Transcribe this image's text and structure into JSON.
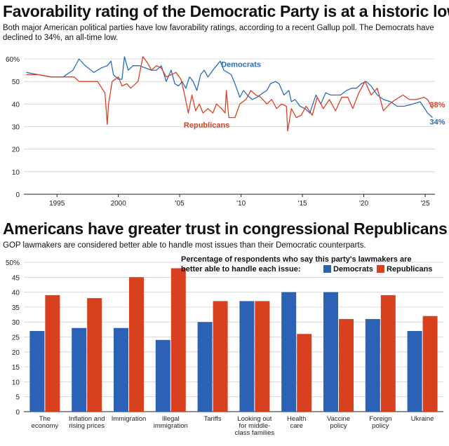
{
  "favorability": {
    "title": "Favorability rating of the Democratic Party is at a historic low",
    "subtitle": "Both major American political parties have low favorability ratings, according to a recent Gallup poll. The Democrats have declined to 34%, an all-time low.",
    "chart_data": {
      "type": "line",
      "ylim": [
        0,
        60
      ],
      "xlim": [
        1992.3,
        2025.8
      ],
      "y_ticks": [
        "0",
        "10",
        "20",
        "30",
        "40",
        "50",
        "60%"
      ],
      "y_tick_values": [
        0,
        10,
        20,
        30,
        40,
        50,
        60
      ],
      "x_ticks": [
        "1995",
        "2000",
        "'05",
        "'10",
        "'15",
        "'20",
        "'25"
      ],
      "x_tick_values": [
        1995,
        2000,
        2005,
        2010,
        2015,
        2020,
        2025
      ],
      "grid": true,
      "series": [
        {
          "name": "Democrats",
          "color": "#2b6cb8",
          "end_label": "34%",
          "points": [
            [
              1992.5,
              54
            ],
            [
              1993.5,
              53
            ],
            [
              1994.5,
              52
            ],
            [
              1995.5,
              52
            ],
            [
              1996.3,
              55
            ],
            [
              1996.8,
              60
            ],
            [
              1997.3,
              57
            ],
            [
              1998,
              54
            ],
            [
              1998.6,
              56
            ],
            [
              1999.1,
              57
            ],
            [
              1999.4,
              59
            ],
            [
              1999.6,
              53
            ],
            [
              2000,
              51
            ],
            [
              2000.3,
              51
            ],
            [
              2000.5,
              61
            ],
            [
              2000.8,
              55
            ],
            [
              2001.2,
              57
            ],
            [
              2001.7,
              57
            ],
            [
              2002.2,
              56
            ],
            [
              2002.7,
              55
            ],
            [
              2003.1,
              55
            ],
            [
              2003.5,
              57
            ],
            [
              2003.9,
              50
            ],
            [
              2004.3,
              55
            ],
            [
              2004.6,
              49
            ],
            [
              2004.9,
              48
            ],
            [
              2005.2,
              50
            ],
            [
              2005.5,
              47
            ],
            [
              2005.8,
              52
            ],
            [
              2006.1,
              50
            ],
            [
              2006.4,
              46
            ],
            [
              2006.7,
              53
            ],
            [
              2007,
              55
            ],
            [
              2007.3,
              52
            ],
            [
              2007.7,
              55
            ],
            [
              2008,
              57
            ],
            [
              2008.3,
              59
            ],
            [
              2008.6,
              55
            ],
            [
              2008.9,
              54
            ],
            [
              2009.2,
              53
            ],
            [
              2009.5,
              49
            ],
            [
              2009.9,
              43
            ],
            [
              2010.2,
              46
            ],
            [
              2010.5,
              44
            ],
            [
              2010.9,
              42
            ],
            [
              2011.3,
              43
            ],
            [
              2011.8,
              45
            ],
            [
              2012.1,
              46
            ],
            [
              2012.4,
              49
            ],
            [
              2012.8,
              50
            ],
            [
              2013.1,
              49
            ],
            [
              2013.5,
              44
            ],
            [
              2013.9,
              46
            ],
            [
              2014.1,
              41
            ],
            [
              2014.4,
              42
            ],
            [
              2014.8,
              39
            ],
            [
              2015.2,
              38
            ],
            [
              2015.6,
              36
            ],
            [
              2016.1,
              44
            ],
            [
              2016.5,
              40
            ],
            [
              2016.9,
              45
            ],
            [
              2017.3,
              44
            ],
            [
              2017.7,
              44
            ],
            [
              2018.1,
              44
            ],
            [
              2018.6,
              46
            ],
            [
              2019,
              47
            ],
            [
              2019.4,
              47
            ],
            [
              2019.8,
              49
            ],
            [
              2020.2,
              50
            ],
            [
              2020.6,
              48
            ],
            [
              2021.1,
              44
            ],
            [
              2021.6,
              42
            ],
            [
              2022.2,
              41
            ],
            [
              2022.7,
              39
            ],
            [
              2023.3,
              39
            ],
            [
              2024,
              40
            ],
            [
              2024.6,
              41
            ],
            [
              2025.2,
              36
            ],
            [
              2025.6,
              34
            ]
          ]
        },
        {
          "name": "Republicans",
          "color": "#d9401f",
          "end_label": "38%",
          "points": [
            [
              1992.5,
              53
            ],
            [
              1993.5,
              53
            ],
            [
              1994.5,
              52
            ],
            [
              1995.5,
              52
            ],
            [
              1996.4,
              52
            ],
            [
              1996.8,
              50
            ],
            [
              1997.5,
              50
            ],
            [
              1998.3,
              50
            ],
            [
              1998.9,
              45
            ],
            [
              1999.1,
              31
            ],
            [
              1999.2,
              40
            ],
            [
              1999.5,
              50
            ],
            [
              2000,
              52
            ],
            [
              2000.3,
              48
            ],
            [
              2000.7,
              49
            ],
            [
              2001,
              47
            ],
            [
              2001.6,
              50
            ],
            [
              2002,
              61
            ],
            [
              2002.4,
              58
            ],
            [
              2002.7,
              55
            ],
            [
              2003.1,
              57
            ],
            [
              2003.5,
              56
            ],
            [
              2003.9,
              52
            ],
            [
              2004.3,
              53
            ],
            [
              2004.7,
              54
            ],
            [
              2005.1,
              51
            ],
            [
              2005.4,
              44
            ],
            [
              2005.7,
              36
            ],
            [
              2006,
              44
            ],
            [
              2006.3,
              37
            ],
            [
              2006.6,
              40
            ],
            [
              2006.9,
              36
            ],
            [
              2007.3,
              38
            ],
            [
              2007.7,
              36
            ],
            [
              2008,
              40
            ],
            [
              2008.4,
              38
            ],
            [
              2008.7,
              36
            ],
            [
              2008.8,
              46
            ],
            [
              2009,
              34
            ],
            [
              2009.5,
              34
            ],
            [
              2009.9,
              40
            ],
            [
              2010.4,
              42
            ],
            [
              2010.8,
              46
            ],
            [
              2011.2,
              44
            ],
            [
              2011.6,
              43
            ],
            [
              2012.1,
              40
            ],
            [
              2012.5,
              42
            ],
            [
              2012.9,
              38
            ],
            [
              2013.3,
              40
            ],
            [
              2013.7,
              39
            ],
            [
              2013.8,
              28
            ],
            [
              2014.1,
              38
            ],
            [
              2014.5,
              34
            ],
            [
              2014.9,
              35
            ],
            [
              2015.3,
              39
            ],
            [
              2015.8,
              35
            ],
            [
              2016.2,
              43
            ],
            [
              2016.7,
              38
            ],
            [
              2017.2,
              42
            ],
            [
              2017.7,
              37
            ],
            [
              2018.2,
              43
            ],
            [
              2018.7,
              43
            ],
            [
              2019.1,
              38
            ],
            [
              2019.6,
              45
            ],
            [
              2020.1,
              50
            ],
            [
              2020.6,
              44
            ],
            [
              2021.1,
              47
            ],
            [
              2021.6,
              37
            ],
            [
              2022.1,
              40
            ],
            [
              2022.6,
              42
            ],
            [
              2023.2,
              44
            ],
            [
              2023.7,
              42
            ],
            [
              2024.3,
              42
            ],
            [
              2024.9,
              43
            ],
            [
              2025.2,
              42
            ],
            [
              2025.6,
              38
            ]
          ]
        }
      ]
    }
  },
  "trust": {
    "title": "Americans have greater trust in congressional Republicans",
    "subtitle": "GOP lawmakers are considered better able to handle most issues than their Democratic counterparts.",
    "chart_data": {
      "type": "bar",
      "legend_title": "Percentage of respondents who say this party's lawmakers are better able to handle each issue:",
      "ylim": [
        0,
        50
      ],
      "y_ticks": [
        "0",
        "5",
        "10",
        "15",
        "20",
        "25",
        "30",
        "35",
        "40",
        "45",
        "50%"
      ],
      "y_tick_values": [
        0,
        5,
        10,
        15,
        20,
        25,
        30,
        35,
        40,
        45,
        50
      ],
      "grid": true,
      "categories": [
        [
          "The",
          "economy"
        ],
        [
          "Inflation and",
          "rising prices"
        ],
        [
          "Immigration"
        ],
        [
          "Illegal",
          "immigration"
        ],
        [
          "Tariffs"
        ],
        [
          "Looking out",
          "for middle-",
          "class families"
        ],
        [
          "Health",
          "care"
        ],
        [
          "Vaccine",
          "policy"
        ],
        [
          "Foreign",
          "policy"
        ],
        [
          "Ukraine"
        ]
      ],
      "series": [
        {
          "name": "Democrats",
          "color": "#2b62b5",
          "values": [
            27,
            28,
            28,
            24,
            30,
            37,
            40,
            40,
            31,
            27
          ]
        },
        {
          "name": "Republicans",
          "color": "#d9401f",
          "values": [
            39,
            38,
            45,
            48,
            37,
            37,
            26,
            31,
            39,
            32
          ]
        }
      ]
    }
  }
}
